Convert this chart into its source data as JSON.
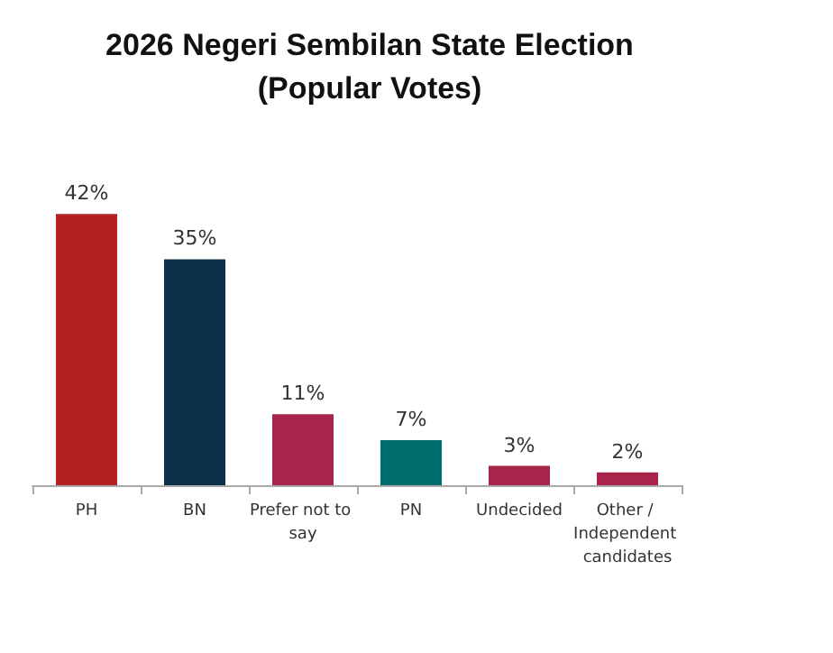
{
  "chart_data": {
    "type": "bar",
    "title": "2026 Negeri Sembilan State Election\n(Popular Votes)",
    "categories": [
      "PH",
      "BN",
      "Prefer not to say",
      "PN",
      "Undecided",
      "Other / Independent candidates"
    ],
    "values": [
      42,
      35,
      11,
      7,
      3,
      2
    ],
    "colors": [
      "#b22222",
      "#0d3049",
      "#a8244a",
      "#006b6b",
      "#a8244a",
      "#a8244a"
    ],
    "value_labels": [
      "42%",
      "35%",
      "11%",
      "7%",
      "3%",
      "2%"
    ],
    "grid": false
  }
}
